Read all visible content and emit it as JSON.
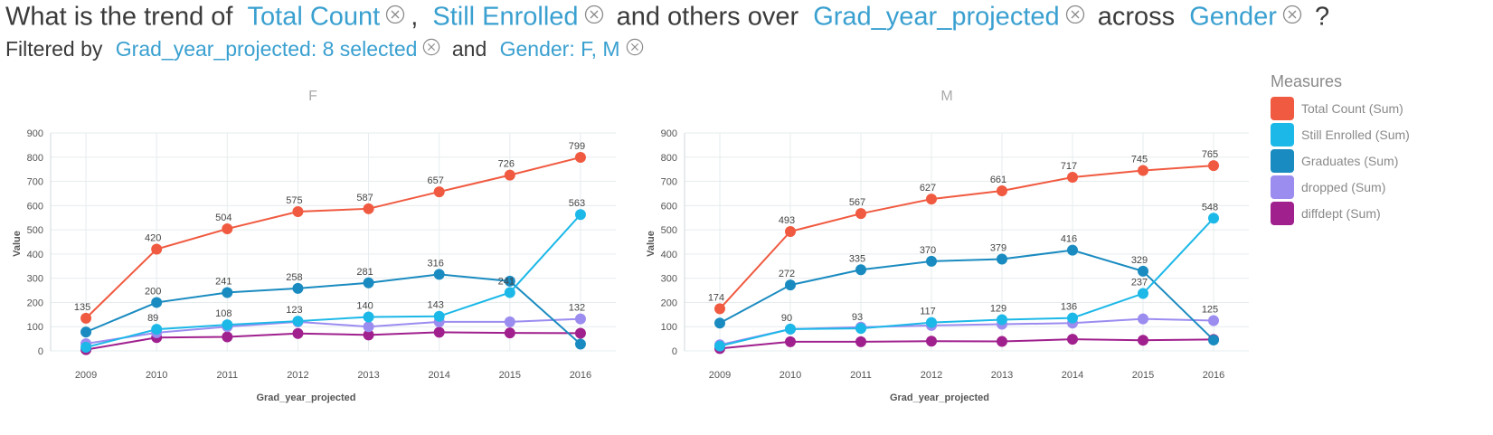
{
  "question": {
    "prefix": "What is the trend of",
    "token1": "Total Count",
    "sep1": ",",
    "token2": "Still Enrolled",
    "mid": "and others over",
    "token3": "Grad_year_projected",
    "mid2": "across",
    "token4": "Gender",
    "suffix": "?"
  },
  "filter": {
    "prefix": "Filtered by",
    "token1": "Grad_year_projected: 8 selected",
    "mid": "and",
    "token2": "Gender: F, M"
  },
  "legend": {
    "title": "Measures",
    "items": [
      {
        "label": "Total Count (Sum)",
        "color": "#f05a40"
      },
      {
        "label": "Still Enrolled (Sum)",
        "color": "#1cb8e8"
      },
      {
        "label": "Graduates (Sum)",
        "color": "#1a8bc0"
      },
      {
        "label": "dropped (Sum)",
        "color": "#9b8cf0"
      },
      {
        "label": "diffdept (Sum)",
        "color": "#a0208e"
      }
    ]
  },
  "chart_data": [
    {
      "type": "line",
      "title": "F",
      "xlabel": "Grad_year_projected",
      "ylabel": "Value",
      "x": [
        "2009",
        "2010",
        "2011",
        "2012",
        "2013",
        "2014",
        "2015",
        "2016"
      ],
      "ylim": [
        0,
        900
      ],
      "yticks": [
        0,
        100,
        200,
        300,
        400,
        500,
        600,
        700,
        800,
        900
      ],
      "grid": true,
      "series": [
        {
          "name": "Total Count (Sum)",
          "color": "#f05a40",
          "values": [
            135,
            420,
            504,
            575,
            587,
            657,
            726,
            799
          ],
          "labels": [
            "135",
            "420",
            "504",
            "575",
            "587",
            "657",
            "726",
            "799"
          ]
        },
        {
          "name": "Still Enrolled (Sum)",
          "color": "#1cb8e8",
          "values": [
            15,
            89,
            108,
            123,
            140,
            143,
            241,
            563
          ],
          "labels": [
            "",
            "89",
            "108",
            "123",
            "140",
            "143",
            "241",
            "563"
          ]
        },
        {
          "name": "Graduates (Sum)",
          "color": "#1a8bc0",
          "values": [
            78,
            200,
            241,
            258,
            281,
            316,
            288,
            28
          ],
          "labels": [
            "",
            "200",
            "241",
            "258",
            "281",
            "316",
            "",
            ""
          ]
        },
        {
          "name": "dropped (Sum)",
          "color": "#9b8cf0",
          "values": [
            30,
            75,
            100,
            120,
            100,
            120,
            120,
            132
          ],
          "labels": [
            "",
            "",
            "",
            "",
            "",
            "",
            "",
            "132"
          ]
        },
        {
          "name": "diffdept (Sum)",
          "color": "#a0208e",
          "values": [
            5,
            55,
            58,
            72,
            66,
            77,
            74,
            73
          ],
          "labels": [
            "",
            "",
            "",
            "",
            "",
            "",
            "",
            ""
          ]
        }
      ]
    },
    {
      "type": "line",
      "title": "M",
      "xlabel": "Grad_year_projected",
      "ylabel": "Value",
      "x": [
        "2009",
        "2010",
        "2011",
        "2012",
        "2013",
        "2014",
        "2015",
        "2016"
      ],
      "ylim": [
        0,
        900
      ],
      "yticks": [
        0,
        100,
        200,
        300,
        400,
        500,
        600,
        700,
        800,
        900
      ],
      "grid": true,
      "series": [
        {
          "name": "Total Count (Sum)",
          "color": "#f05a40",
          "values": [
            174,
            493,
            567,
            627,
            661,
            717,
            745,
            765
          ],
          "labels": [
            "174",
            "493",
            "567",
            "627",
            "661",
            "717",
            "745",
            "765"
          ]
        },
        {
          "name": "Still Enrolled (Sum)",
          "color": "#1cb8e8",
          "values": [
            20,
            90,
            93,
            117,
            129,
            136,
            237,
            548
          ],
          "labels": [
            "",
            "90",
            "93",
            "117",
            "129",
            "136",
            "237",
            "548"
          ]
        },
        {
          "name": "Graduates (Sum)",
          "color": "#1a8bc0",
          "values": [
            115,
            272,
            335,
            370,
            379,
            416,
            329,
            45
          ],
          "labels": [
            "",
            "272",
            "335",
            "370",
            "379",
            "416",
            "329",
            ""
          ]
        },
        {
          "name": "dropped (Sum)",
          "color": "#9b8cf0",
          "values": [
            25,
            90,
            98,
            105,
            110,
            115,
            132,
            125
          ],
          "labels": [
            "",
            "",
            "",
            "",
            "",
            "",
            "",
            "125"
          ]
        },
        {
          "name": "diffdept (Sum)",
          "color": "#a0208e",
          "values": [
            10,
            38,
            38,
            40,
            39,
            48,
            44,
            47
          ],
          "labels": [
            "",
            "",
            "",
            "",
            "",
            "",
            "",
            ""
          ]
        }
      ]
    }
  ]
}
